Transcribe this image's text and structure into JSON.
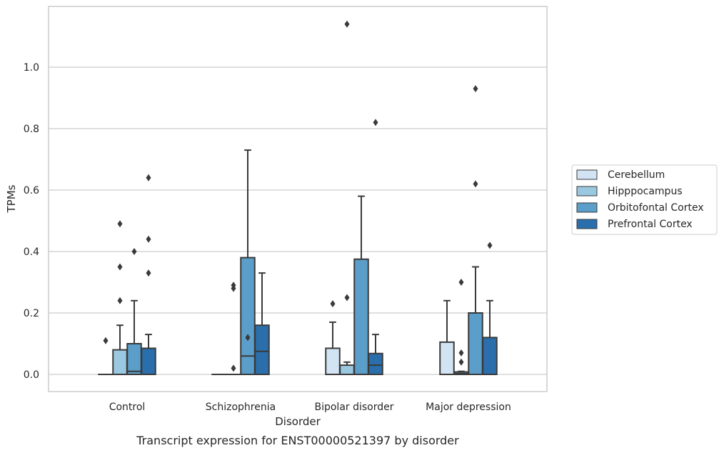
{
  "caption": "Transcript expression for ENST00000521397 by disorder",
  "chart_data": {
    "type": "box",
    "xlabel": "Disorder",
    "ylabel": "TPMs",
    "ylim": [
      -0.055,
      1.2
    ],
    "yticks": [
      "0.0",
      "0.2",
      "0.4",
      "0.6",
      "0.8",
      "1.0"
    ],
    "grid": "horizontal",
    "legend_position": "right",
    "categories": [
      "Control",
      "Schizophrenia",
      "Bipolar disorder",
      "Major depression"
    ],
    "series": [
      {
        "name": "Cerebellum",
        "color": "#d2e3f3",
        "boxes": [
          {
            "q1": 0,
            "median": 0,
            "q3": 0,
            "low": 0,
            "high": 0,
            "outliers": [
              0.11
            ]
          },
          {
            "q1": 0,
            "median": 0,
            "q3": 0,
            "low": 0,
            "high": 0,
            "outliers": []
          },
          {
            "q1": 0,
            "median": 0,
            "q3": 0.085,
            "low": 0,
            "high": 0.17,
            "outliers": [
              0.23
            ]
          },
          {
            "q1": 0,
            "median": 0,
            "q3": 0.105,
            "low": 0,
            "high": 0.24,
            "outliers": []
          }
        ]
      },
      {
        "name": "Hipppocampus",
        "color": "#9ac8e0",
        "boxes": [
          {
            "q1": 0,
            "median": 0,
            "q3": 0.08,
            "low": 0,
            "high": 0.16,
            "outliers": [
              0.24,
              0.35,
              0.49
            ]
          },
          {
            "q1": 0,
            "median": 0,
            "q3": 0,
            "low": 0,
            "high": 0,
            "outliers": [
              0.02,
              0.28,
              0.29
            ]
          },
          {
            "q1": 0,
            "median": 0,
            "q3": 0.03,
            "low": 0,
            "high": 0.04,
            "outliers": [
              0.25,
              1.14
            ]
          },
          {
            "q1": 0,
            "median": 0.003,
            "q3": 0.008,
            "low": 0,
            "high": 0.01,
            "outliers": [
              0.04,
              0.07,
              0.3
            ]
          }
        ]
      },
      {
        "name": "Orbitofontal Cortex",
        "color": "#5a9ec9",
        "boxes": [
          {
            "q1": 0,
            "median": 0.01,
            "q3": 0.1,
            "low": 0,
            "high": 0.24,
            "outliers": [
              0.4
            ]
          },
          {
            "q1": 0,
            "median": 0.06,
            "q3": 0.38,
            "low": 0,
            "high": 0.73,
            "outliers": [
              0.12
            ]
          },
          {
            "q1": 0,
            "median": 0,
            "q3": 0.375,
            "low": 0,
            "high": 0.58,
            "outliers": []
          },
          {
            "q1": 0,
            "median": 0,
            "q3": 0.2,
            "low": 0,
            "high": 0.35,
            "outliers": [
              0.62,
              0.93
            ]
          }
        ]
      },
      {
        "name": "Prefrontal Cortex",
        "color": "#2a6fac",
        "boxes": [
          {
            "q1": 0,
            "median": 0,
            "q3": 0.085,
            "low": 0,
            "high": 0.13,
            "outliers": [
              0.33,
              0.44,
              0.64
            ]
          },
          {
            "q1": 0,
            "median": 0.075,
            "q3": 0.16,
            "low": 0,
            "high": 0.33,
            "outliers": []
          },
          {
            "q1": 0,
            "median": 0.03,
            "q3": 0.068,
            "low": 0,
            "high": 0.13,
            "outliers": [
              0.82
            ]
          },
          {
            "q1": 0,
            "median": 0,
            "q3": 0.12,
            "low": 0,
            "high": 0.24,
            "outliers": [
              0.42
            ]
          }
        ]
      }
    ]
  }
}
